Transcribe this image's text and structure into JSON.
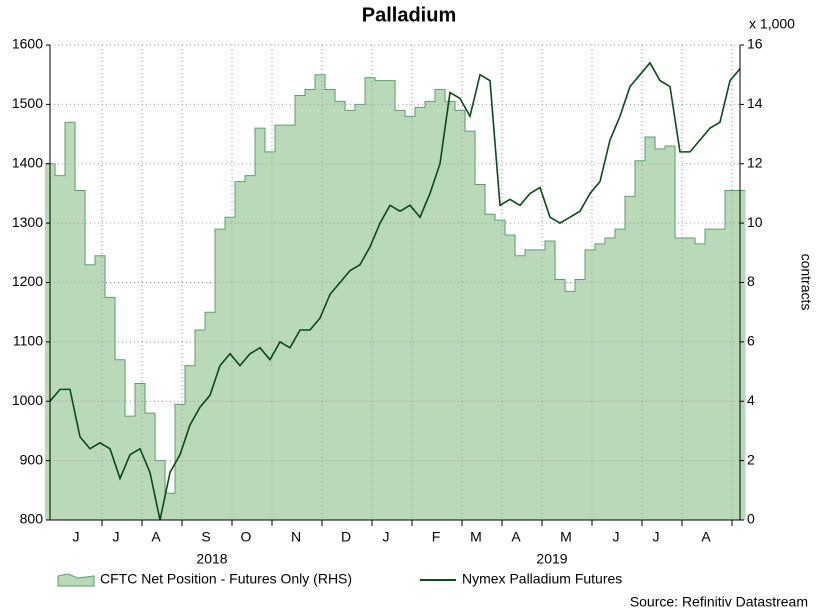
{
  "chart_data": {
    "type": "dual",
    "title": "Palladium",
    "y2_unit": "x 1,000",
    "y2label": "contracts",
    "source": "Source: Refinitiv Datastream",
    "year_labels": [
      "2018",
      "2019"
    ],
    "categories": [
      null,
      null,
      null,
      "J",
      null,
      null,
      null,
      "J",
      null,
      null,
      null,
      "A",
      null,
      null,
      null,
      null,
      "S",
      null,
      null,
      null,
      "O",
      null,
      null,
      null,
      null,
      "N",
      null,
      null,
      null,
      null,
      "D",
      null,
      null,
      null,
      "J",
      null,
      null,
      null,
      null,
      "F",
      null,
      null,
      null,
      "M",
      null,
      null,
      null,
      "A",
      null,
      null,
      null,
      null,
      "M",
      null,
      null,
      null,
      null,
      "J",
      null,
      null,
      null,
      "J",
      null,
      null,
      null,
      null,
      "A",
      null,
      null,
      null
    ],
    "series": [
      {
        "name": "CFTC Net Position - Futures Only (RHS)",
        "type": "area",
        "axis": "y2",
        "color": "#b9d9b9",
        "values": [
          12.0,
          11.6,
          13.4,
          11.1,
          8.6,
          8.9,
          7.5,
          5.4,
          3.5,
          4.6,
          3.6,
          2.0,
          0.9,
          3.9,
          5.2,
          6.4,
          7.0,
          9.8,
          10.2,
          11.4,
          11.6,
          13.2,
          12.4,
          13.3,
          13.3,
          14.3,
          14.5,
          15.0,
          14.5,
          14.1,
          13.8,
          14.0,
          14.9,
          14.8,
          14.8,
          13.8,
          13.6,
          13.9,
          14.1,
          14.5,
          14.1,
          13.8,
          13.1,
          11.3,
          10.3,
          10.1,
          9.6,
          8.9,
          9.1,
          9.1,
          9.4,
          8.1,
          7.7,
          8.1,
          9.1,
          9.3,
          9.5,
          9.8,
          10.9,
          12.1,
          12.9,
          12.5,
          12.6,
          9.5,
          9.5,
          9.3,
          9.8,
          9.8,
          11.1,
          11.1
        ]
      },
      {
        "name": "Nymex Palladium Futures",
        "type": "line",
        "axis": "y",
        "color": "#0b4a1a",
        "values": [
          1000,
          1020,
          1020,
          940,
          920,
          930,
          920,
          870,
          910,
          920,
          880,
          800,
          880,
          910,
          960,
          990,
          1010,
          1060,
          1080,
          1060,
          1080,
          1090,
          1070,
          1100,
          1090,
          1120,
          1120,
          1140,
          1180,
          1200,
          1220,
          1230,
          1260,
          1300,
          1330,
          1320,
          1330,
          1310,
          1350,
          1400,
          1520,
          1510,
          1480,
          1550,
          1540,
          1330,
          1340,
          1330,
          1350,
          1360,
          1310,
          1300,
          1310,
          1320,
          1350,
          1370,
          1440,
          1480,
          1530,
          1550,
          1570,
          1540,
          1530,
          1420,
          1420,
          1440,
          1460,
          1470,
          1540,
          1560
        ]
      }
    ],
    "ylim": [
      800,
      1600
    ],
    "yticks": [
      800,
      900,
      1000,
      1100,
      1200,
      1300,
      1400,
      1500,
      1600
    ],
    "y2lim": [
      0,
      16
    ],
    "y2ticks": [
      0,
      2,
      4,
      6,
      8,
      10,
      12,
      14,
      16
    ],
    "grid": true
  }
}
